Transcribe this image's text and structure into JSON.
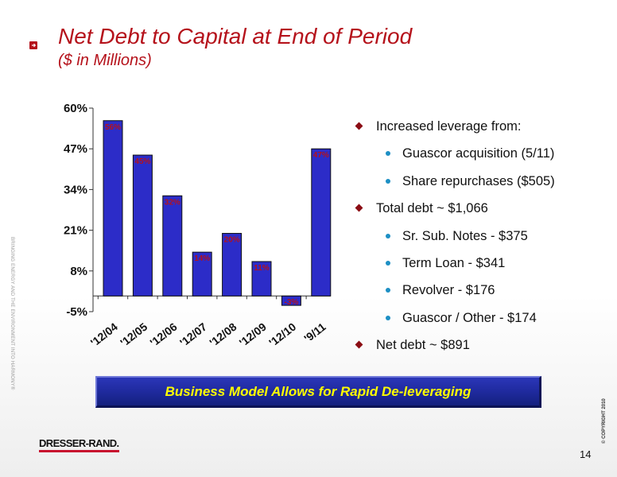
{
  "slide": {
    "title": "Net Debt to Capital at End of Period",
    "subtitle": "($ in Millions)",
    "side_text": "BRINGING ENERGY AND THE ENVIRONMENT INTO HARMONY®",
    "copyright": "© COPYRIGHT 2010",
    "page_number": "14",
    "logo_text": "DRESSER-RAND.",
    "banner": "Business Model Allows for Rapid De-leveraging",
    "bullets": [
      {
        "level": 1,
        "text": "Increased leverage from:"
      },
      {
        "level": 2,
        "text": "Guascor acquisition (5/11)"
      },
      {
        "level": 2,
        "text": "Share repurchases ($505)"
      },
      {
        "level": 1,
        "text": "Total debt ~ $1,066"
      },
      {
        "level": 2,
        "text": "Sr. Sub. Notes - $375"
      },
      {
        "level": 2,
        "text": "Term Loan - $341"
      },
      {
        "level": 2,
        "text": "Revolver - $176"
      },
      {
        "level": 2,
        "text": "Guascor / Other - $174"
      },
      {
        "level": 1,
        "text": "Net debt ~ $891"
      }
    ],
    "colors": {
      "title": "#b5121b",
      "bar_fill": "#2c2cc8",
      "data_label": "#b5121b",
      "banner_bg": "#1f2a9e",
      "banner_text": "#ffff00"
    }
  },
  "chart_data": {
    "type": "bar",
    "categories": [
      "'12/04",
      "'12/05",
      "'12/06",
      "'12/07",
      "'12/08",
      "'12/09",
      "'12/10",
      "'9/11"
    ],
    "values": [
      56,
      45,
      32,
      14,
      20,
      11,
      -3,
      47
    ],
    "data_labels": [
      "56%",
      "45%",
      "32%",
      "14%",
      "20%",
      "11%",
      "-3%",
      "47%"
    ],
    "y_ticks": [
      60,
      47,
      34,
      21,
      8,
      -5
    ],
    "y_tick_labels": [
      "60%",
      "47%",
      "34%",
      "21%",
      "8%",
      "-5%"
    ],
    "ylim": [
      -5,
      60
    ],
    "xlabel": "",
    "ylabel": "",
    "grid": false,
    "legend": false
  }
}
